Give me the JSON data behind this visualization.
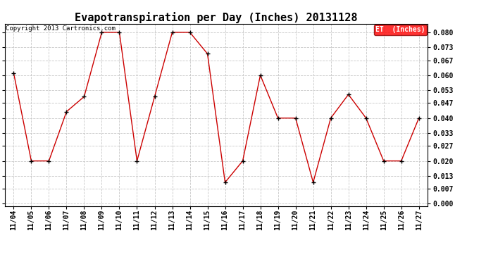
{
  "title": "Evapotranspiration per Day (Inches) 20131128",
  "copyright": "Copyright 2013 Cartronics.com",
  "legend_label": "ET  (Inches)",
  "legend_bg": "#ff0000",
  "legend_fg": "#ffffff",
  "line_color": "#cc0000",
  "marker_color": "#000000",
  "background_color": "#ffffff",
  "grid_color": "#c8c8c8",
  "x_labels": [
    "11/04",
    "11/05",
    "11/06",
    "11/07",
    "11/08",
    "11/09",
    "11/10",
    "11/11",
    "11/12",
    "11/13",
    "11/14",
    "11/15",
    "11/16",
    "11/17",
    "11/18",
    "11/19",
    "11/20",
    "11/21",
    "11/22",
    "11/23",
    "11/24",
    "11/25",
    "11/26",
    "11/27"
  ],
  "y_values": [
    0.061,
    0.02,
    0.02,
    0.043,
    0.05,
    0.08,
    0.08,
    0.02,
    0.05,
    0.08,
    0.08,
    0.07,
    0.01,
    0.02,
    0.06,
    0.04,
    0.04,
    0.01,
    0.04,
    0.051,
    0.04,
    0.02,
    0.02,
    0.04
  ],
  "ylim": [
    -0.001,
    0.084
  ],
  "yticks": [
    0.0,
    0.007,
    0.013,
    0.02,
    0.027,
    0.033,
    0.04,
    0.047,
    0.053,
    0.06,
    0.067,
    0.073,
    0.08
  ],
  "title_fontsize": 11,
  "tick_fontsize": 7,
  "copyright_fontsize": 6.5
}
